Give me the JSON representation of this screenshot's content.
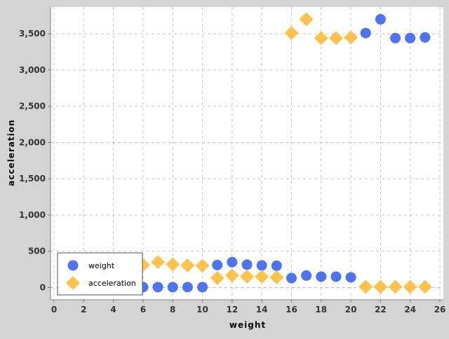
{
  "chart_data": {
    "type": "scatter",
    "title": "",
    "xlabel": "weight",
    "ylabel": "acceleration",
    "xlim": [
      0,
      26
    ],
    "ylim": [
      -150,
      3850
    ],
    "x_ticks": [
      0,
      2,
      4,
      6,
      8,
      10,
      12,
      14,
      16,
      18,
      20,
      22,
      24,
      26
    ],
    "y_ticks": [
      0,
      500,
      1000,
      1500,
      2000,
      2500,
      3000,
      3500
    ],
    "x_tick_labels": [
      "0",
      "2",
      "4",
      "6",
      "8",
      "10",
      "12",
      "14",
      "16",
      "18",
      "20",
      "22",
      "24",
      "26"
    ],
    "y_tick_labels": [
      "0",
      "500",
      "1,000",
      "1,500",
      "2,000",
      "2,500",
      "3,000",
      "3,500"
    ],
    "grid": true,
    "legend_position": "bottom-left",
    "series": [
      {
        "name": "weight",
        "color": "#4f74f0",
        "marker": "circle",
        "points": [
          [
            6,
            5
          ],
          [
            7,
            5
          ],
          [
            8,
            5
          ],
          [
            9,
            5
          ],
          [
            10,
            5
          ],
          [
            11,
            310
          ],
          [
            12,
            350
          ],
          [
            13,
            315
          ],
          [
            14,
            305
          ],
          [
            15,
            300
          ],
          [
            16,
            130
          ],
          [
            17,
            165
          ],
          [
            18,
            150
          ],
          [
            19,
            150
          ],
          [
            20,
            140
          ],
          [
            21,
            3510
          ],
          [
            22,
            3700
          ],
          [
            23,
            3440
          ],
          [
            24,
            3440
          ],
          [
            25,
            3450
          ]
        ]
      },
      {
        "name": "acceleration",
        "color": "#ffc24f",
        "marker": "diamond",
        "points": [
          [
            6,
            310
          ],
          [
            7,
            350
          ],
          [
            8,
            320
          ],
          [
            9,
            305
          ],
          [
            10,
            300
          ],
          [
            11,
            130
          ],
          [
            12,
            165
          ],
          [
            13,
            150
          ],
          [
            14,
            150
          ],
          [
            15,
            140
          ],
          [
            16,
            3510
          ],
          [
            17,
            3700
          ],
          [
            18,
            3440
          ],
          [
            19,
            3440
          ],
          [
            20,
            3450
          ],
          [
            21,
            10
          ],
          [
            22,
            10
          ],
          [
            23,
            10
          ],
          [
            24,
            10
          ],
          [
            25,
            10
          ]
        ]
      }
    ]
  }
}
